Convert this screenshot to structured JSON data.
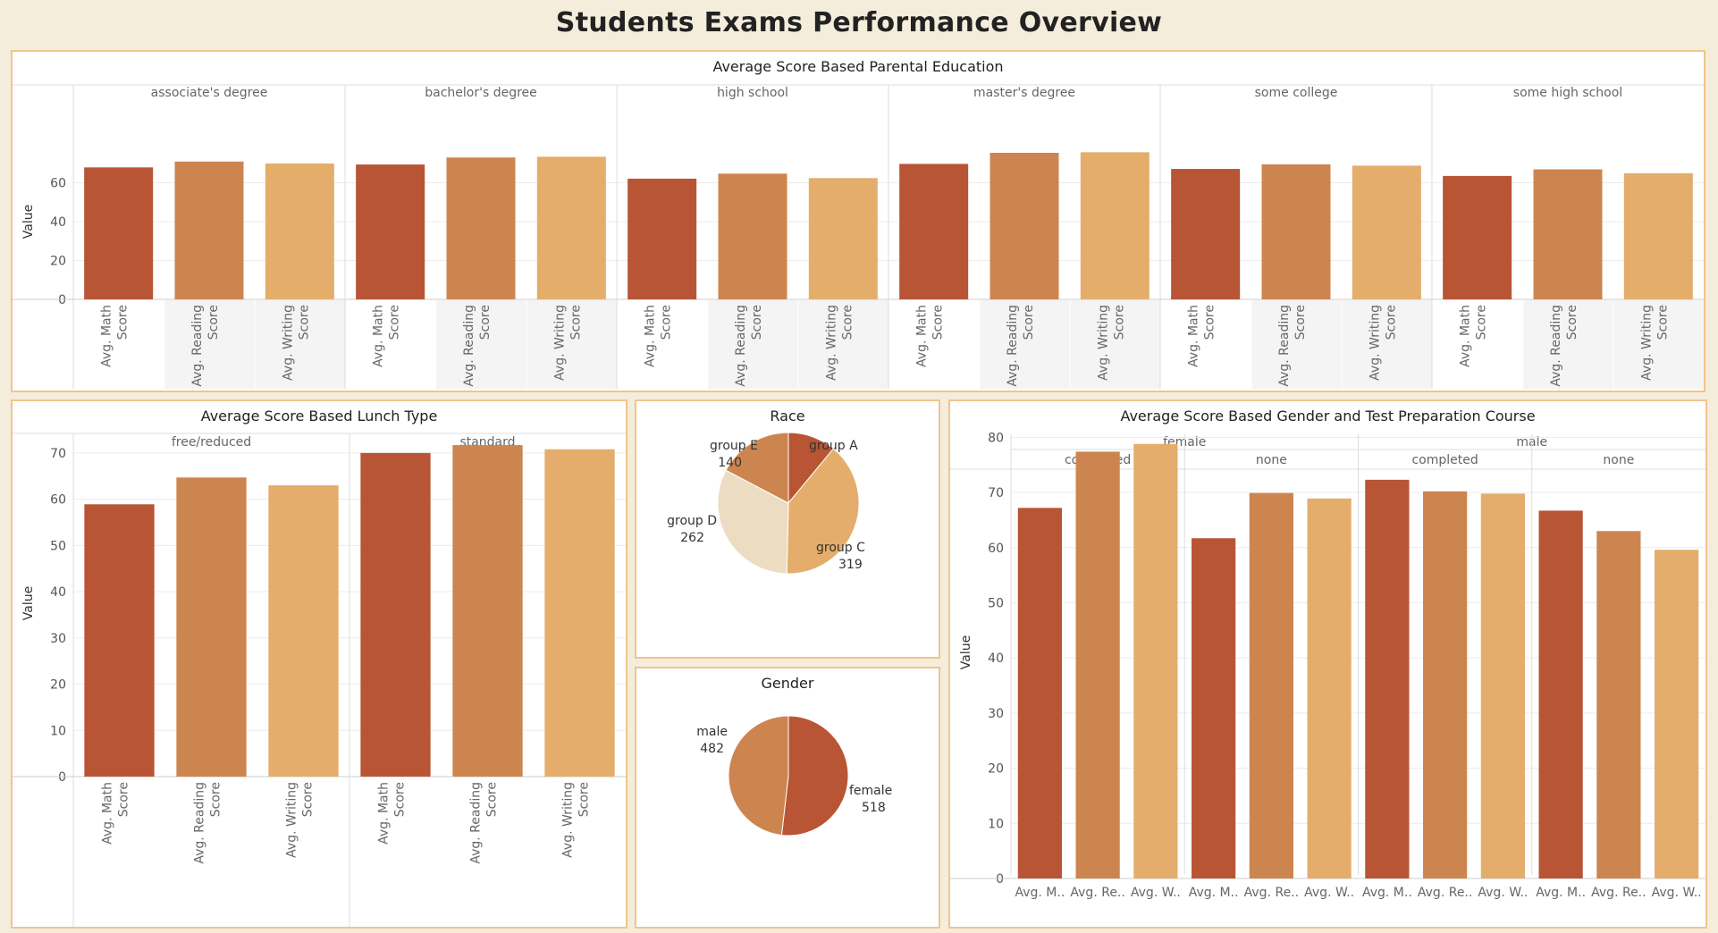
{
  "page_title": "Students Exams Performance Overview",
  "colors": {
    "math": "#b85535",
    "reading": "#cd8550",
    "writing": "#e4ad6b",
    "panel_border": "#f2c48d",
    "background": "#f5eddc"
  },
  "chart_data": [
    {
      "type": "bar",
      "title": "Average Score Based Parental Education",
      "ylabel": "Value",
      "ylim": [
        0,
        80
      ],
      "yticks": [
        0,
        20,
        40,
        60
      ],
      "measures": [
        "Avg. Math Score",
        "Avg. Reading Score",
        "Avg. Writing Score"
      ],
      "groups": [
        "associate's degree",
        "bachelor's degree",
        "high school",
        "master's degree",
        "some college",
        "some high school"
      ],
      "series": [
        {
          "name": "Avg. Math Score",
          "values": [
            67.9,
            69.4,
            62.1,
            69.7,
            67.1,
            63.5
          ]
        },
        {
          "name": "Avg. Reading Score",
          "values": [
            70.9,
            73.0,
            64.7,
            75.4,
            69.5,
            66.9
          ]
        },
        {
          "name": "Avg. Writing Score",
          "values": [
            69.9,
            73.4,
            62.4,
            75.7,
            68.8,
            64.9
          ]
        }
      ]
    },
    {
      "type": "bar",
      "title": "Average Score Based Lunch Type",
      "ylabel": "Value",
      "ylim": [
        0,
        75
      ],
      "yticks": [
        0,
        10,
        20,
        30,
        40,
        50,
        60,
        70
      ],
      "measures": [
        "Avg. Math Score",
        "Avg. Reading Score",
        "Avg. Writing Score"
      ],
      "groups": [
        "free/reduced",
        "standard"
      ],
      "series": [
        {
          "name": "Avg. Math Score",
          "values": [
            58.9,
            70.0
          ]
        },
        {
          "name": "Avg. Reading Score",
          "values": [
            64.7,
            71.7
          ]
        },
        {
          "name": "Avg. Writing Score",
          "values": [
            63.0,
            70.8
          ]
        }
      ]
    },
    {
      "type": "pie",
      "title": "Race",
      "slices": [
        {
          "label": "group A",
          "value": 89,
          "color": "#b85535"
        },
        {
          "label": "group C",
          "value": 319,
          "color": "#e4ad6b"
        },
        {
          "label": "group D",
          "value": 262,
          "color": "#ecdcc2"
        },
        {
          "label": "group E",
          "value": 140,
          "color": "#cd8550"
        }
      ]
    },
    {
      "type": "pie",
      "title": "Gender",
      "slices": [
        {
          "label": "female",
          "value": 518,
          "color": "#b85535"
        },
        {
          "label": "male",
          "value": 482,
          "color": "#cd8550"
        }
      ]
    },
    {
      "type": "bar",
      "title": "Average Score Based Gender and Test Preparation Course",
      "ylabel": "Value",
      "ylim": [
        0,
        82
      ],
      "yticks": [
        0,
        10,
        20,
        30,
        40,
        50,
        60,
        70,
        80
      ],
      "measures": [
        "Avg. M..",
        "Avg. Re..",
        "Avg. W.."
      ],
      "top_groups": [
        "female",
        "male"
      ],
      "groups": [
        "completed",
        "none",
        "completed",
        "none"
      ],
      "series": [
        {
          "name": "Avg. Math Score",
          "values": [
            67.2,
            61.7,
            72.3,
            66.7
          ]
        },
        {
          "name": "Avg. Reading Score",
          "values": [
            77.4,
            69.9,
            70.2,
            63.0
          ]
        },
        {
          "name": "Avg. Writing Score",
          "values": [
            78.8,
            68.9,
            69.8,
            59.6
          ]
        }
      ]
    }
  ]
}
